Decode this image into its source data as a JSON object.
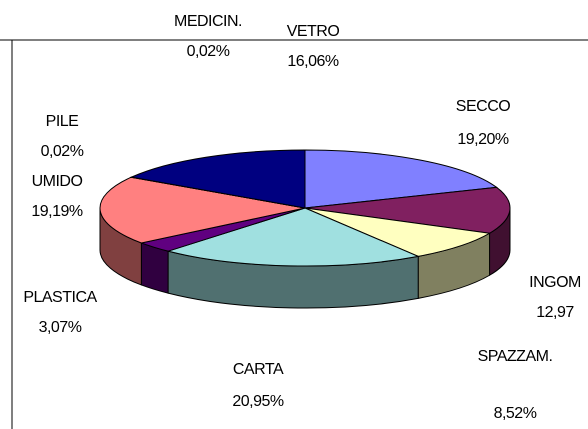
{
  "chart_data": {
    "type": "pie",
    "categories": [
      "SECCO",
      "INGOM",
      "SPAZZAM.",
      "CARTA",
      "PLASTICA",
      "UMIDO",
      "PILE",
      "MEDICIN.",
      "VETRO"
    ],
    "values": [
      19.2,
      12.97,
      8.52,
      20.95,
      3.07,
      19.19,
      0.02,
      0.02,
      16.06
    ],
    "value_labels": [
      "19,20%",
      "12,97",
      "8,52%",
      "20,95%",
      "3,07%",
      "19,19%",
      "0,02%",
      "0,02%",
      "16,06%"
    ],
    "colors": [
      "#8080ff",
      "#802060",
      "#ffffc0",
      "#a0e0e0",
      "#600080",
      "#ff8080",
      "#0066cc",
      "#c0c0ff",
      "#000080"
    ]
  }
}
